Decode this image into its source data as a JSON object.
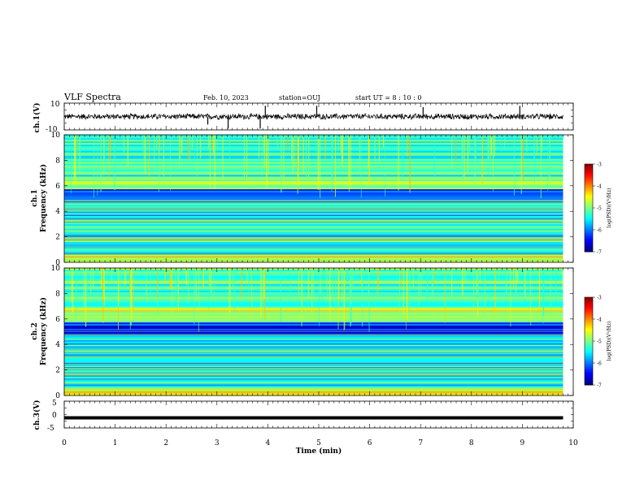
{
  "header": {
    "title": "VLF Spectra",
    "date": "Feb. 10, 2023",
    "station": "station=OUJ",
    "start_ut": "start UT =  8 : 10 : 0"
  },
  "chart_data": [
    {
      "type": "line",
      "name": "ch1-waveform",
      "ylabel": "ch.1(V)",
      "ylim": [
        -10,
        10
      ],
      "y_ticks": [
        "10",
        "-10"
      ],
      "x_range_min": [
        0,
        9.8
      ],
      "baseline_v": 0.0,
      "noise_amplitude_v": 2.5,
      "spikes": [
        {
          "t": 2.82,
          "v": -6
        },
        {
          "t": 3.22,
          "v": -9
        },
        {
          "t": 3.85,
          "v": -9
        },
        {
          "t": 3.95,
          "v": 8
        },
        {
          "t": 4.96,
          "v": 8
        },
        {
          "t": 7.05,
          "v": 7
        },
        {
          "t": 8.95,
          "v": 8
        }
      ]
    },
    {
      "type": "heatmap",
      "name": "ch1-spectrogram",
      "ylabel_channel": "ch.1",
      "ylabel": "Frequency (kHz)",
      "ylim": [
        0,
        10
      ],
      "y_ticks": [
        "0",
        "2",
        "4",
        "6",
        "8",
        "10"
      ],
      "x_range_min": [
        0,
        9.8
      ],
      "color_scale": {
        "label": "log(PSD)(V²/Hz)",
        "range": [
          -7,
          -3
        ],
        "ticks": [
          "-3",
          "-4",
          "-5",
          "-6",
          "-7"
        ]
      },
      "bands_khz": [
        {
          "from": 0,
          "to": 0.6,
          "level": -4.6
        },
        {
          "from": 0.6,
          "to": 4.8,
          "level": -5.6
        },
        {
          "from": 4.8,
          "to": 5.8,
          "level": -6.4
        },
        {
          "from": 5.8,
          "to": 6.8,
          "level": -5.0
        },
        {
          "from": 6.8,
          "to": 10,
          "level": -5.3
        }
      ]
    },
    {
      "type": "heatmap",
      "name": "ch2-spectrogram",
      "ylabel_channel": "ch.2",
      "ylabel": "Frequency (kHz)",
      "ylim": [
        0,
        10
      ],
      "y_ticks": [
        "0",
        "2",
        "4",
        "6",
        "8",
        "10"
      ],
      "x_range_min": [
        0,
        9.8
      ],
      "color_scale": {
        "label": "log(PSD)(V²/Hz)",
        "range": [
          -7,
          -3
        ],
        "ticks": [
          "-3",
          "-4",
          "-5",
          "-6",
          "-7"
        ]
      },
      "bands_khz": [
        {
          "from": 0,
          "to": 0.6,
          "level": -4.6
        },
        {
          "from": 0.6,
          "to": 4.8,
          "level": -5.6
        },
        {
          "from": 4.8,
          "to": 5.8,
          "level": -6.4
        },
        {
          "from": 5.8,
          "to": 7.0,
          "level": -4.7
        },
        {
          "from": 7.0,
          "to": 10,
          "level": -5.2
        }
      ]
    },
    {
      "type": "line",
      "name": "ch3-waveform",
      "ylabel": "ch.3(V)",
      "ylim": [
        -5,
        5
      ],
      "y_ticks": [
        "5",
        "0",
        "-5"
      ],
      "x_range_min": [
        0,
        9.8
      ],
      "baseline_v": -1.2
    }
  ],
  "x_axis": {
    "label": "Time (min)",
    "range": [
      0,
      10
    ],
    "ticks": [
      "0",
      "1",
      "2",
      "3",
      "4",
      "5",
      "6",
      "7",
      "8",
      "9",
      "10"
    ]
  }
}
